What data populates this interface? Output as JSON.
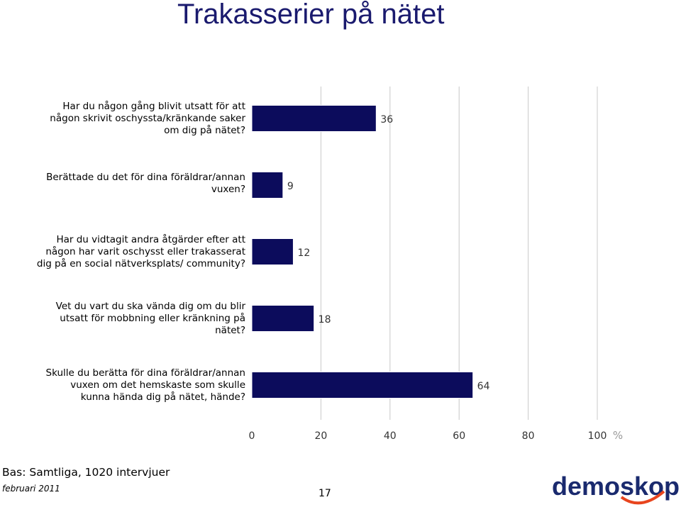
{
  "title": "Trakasserier på nätet",
  "chart_data": {
    "type": "bar",
    "orientation": "horizontal",
    "categories": [
      "Har du någon gång blivit utsatt för att någon skrivit oschyssta/kränkande saker om dig på nätet?",
      "Berättade du det för dina föräldrar/annan vuxen?",
      "Har du vidtagit andra åtgärder efter att någon har varit oschysst eller trakasserat dig på en social nätverksplats/ community?",
      "Vet du vart du ska vända dig om du blir utsatt för mobbning eller kränkning på nätet?",
      "Skulle du berätta för dina föräldrar/annan vuxen om det hemskaste som skulle kunna hända dig på nätet, hände?"
    ],
    "category_lines": [
      [
        "Har du någon gång blivit utsatt för att",
        "någon skrivit oschyssta/kränkande saker",
        "om dig på nätet?"
      ],
      [
        "Berättade du det för dina föräldrar/annan",
        "vuxen?"
      ],
      [
        "Har du vidtagit andra åtgärder efter att",
        "någon har varit oschysst eller trakasserat",
        "dig på en social nätverksplats/ community?"
      ],
      [
        "Vet du vart du ska vända dig om du blir",
        "utsatt för mobbning eller kränkning på",
        "nätet?"
      ],
      [
        "Skulle du berätta för dina föräldrar/annan",
        "vuxen om det hemskaste som skulle",
        "kunna hända dig på nätet, hände?"
      ]
    ],
    "values": [
      36,
      9,
      12,
      18,
      64
    ],
    "xlim": [
      0,
      100
    ],
    "ticks": [
      0,
      20,
      40,
      60,
      80,
      100
    ],
    "unit": "%",
    "grid": true,
    "bar_color": "#0c0c5c"
  },
  "footer": {
    "base": "Bas: Samtliga, 1020 intervjuer",
    "date": "februari 2011",
    "page": "17",
    "logo_text": "demoskop"
  }
}
